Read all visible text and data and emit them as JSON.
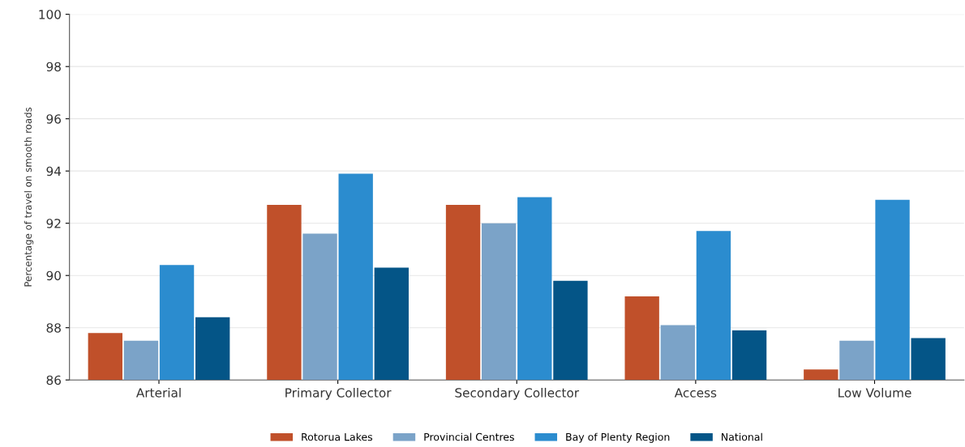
{
  "chart_data": {
    "type": "bar",
    "ylabel": "Percentage of travel on smooth roads",
    "categories": [
      "Arterial",
      "Primary Collector",
      "Secondary Collector",
      "Access",
      "Low Volume"
    ],
    "series": [
      {
        "name": "Rotorua Lakes",
        "color": "#c0502a",
        "values": [
          87.8,
          92.7,
          92.7,
          89.2,
          86.4
        ]
      },
      {
        "name": "Provincial Centres",
        "color": "#7ba3c8",
        "values": [
          87.5,
          91.6,
          92.0,
          88.1,
          87.5
        ]
      },
      {
        "name": "Bay of Plenty Region",
        "color": "#2b8ccf",
        "values": [
          90.4,
          93.9,
          93.0,
          91.7,
          92.9
        ]
      },
      {
        "name": "National",
        "color": "#045587",
        "values": [
          88.4,
          90.3,
          89.8,
          87.9,
          87.6
        ]
      }
    ],
    "ylim": [
      86,
      100
    ],
    "yticks": [
      86,
      88,
      90,
      92,
      94,
      96,
      98,
      100
    ],
    "grid": "y",
    "legend": "bottom"
  }
}
